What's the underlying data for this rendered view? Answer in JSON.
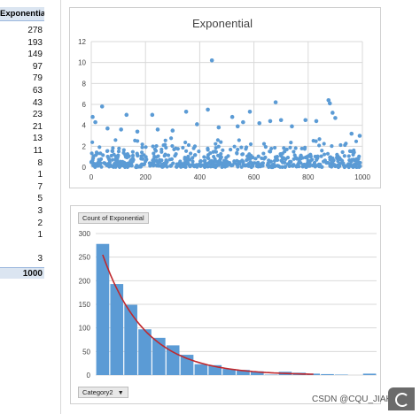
{
  "table": {
    "header": "Exponential",
    "values": [
      "278",
      "193",
      "149",
      "97",
      "79",
      "63",
      "43",
      "23",
      "21",
      "13",
      "11",
      "8",
      "1",
      "7",
      "5",
      "3",
      "2",
      "1",
      "",
      "3"
    ],
    "total": "1000"
  },
  "scatter_chart": {
    "title": "Exponential"
  },
  "histogram": {
    "value_field_label": "Count of Exponential",
    "axis_field_label": "Category2"
  },
  "watermark": "CSDN @CQU_JIAKE",
  "icons": {
    "dropdown": "triangle-down-icon",
    "corner": "refresh-icon"
  },
  "colors": {
    "marker": "#5b9bd5",
    "bar": "#5b9bd5",
    "trendline": "#c0282d",
    "gridline": "#d9d9d9",
    "table_header": "#dbe5f1"
  },
  "chart_data": [
    {
      "type": "scatter",
      "title": "Exponential",
      "xlim": [
        0,
        1000
      ],
      "ylim": [
        0,
        12
      ],
      "x_ticks": [
        0,
        200,
        400,
        600,
        800,
        1000
      ],
      "y_ticks": [
        0,
        2,
        4,
        6,
        8,
        10,
        12
      ],
      "grid": true,
      "series": [
        {
          "x": [
            40,
            130,
            225,
            245,
            350,
            430,
            445,
            520,
            540,
            560,
            585,
            660,
            680,
            700,
            790,
            830,
            875,
            880,
            890,
            900,
            5,
            15,
            60,
            110,
            170,
            300,
            390,
            470,
            620,
            740,
            960,
            990
          ],
          "y": [
            5.8,
            5.0,
            5.0,
            3.6,
            5.3,
            5.5,
            10.2,
            4.8,
            3.9,
            4.3,
            5.3,
            4.4,
            6.2,
            4.5,
            4.5,
            4.4,
            6.4,
            6.1,
            5.2,
            4.7,
            4.8,
            4.3,
            3.7,
            3.6,
            3.4,
            3.5,
            4.1,
            3.8,
            4.2,
            3.9,
            3.2,
            3.0
          ],
          "noise_count": 640
        }
      ]
    },
    {
      "type": "bar",
      "ylim": [
        0,
        300
      ],
      "y_ticks": [
        0,
        50,
        100,
        150,
        200,
        250,
        300
      ],
      "grid": true,
      "values": [
        278,
        193,
        149,
        97,
        79,
        63,
        43,
        23,
        21,
        13,
        11,
        8,
        1,
        7,
        5,
        3,
        2,
        1,
        0,
        3
      ],
      "trendline": {
        "type": "exponential",
        "start": 255,
        "decay": 0.33,
        "from_bar": 0,
        "to_bar": 15
      }
    }
  ]
}
